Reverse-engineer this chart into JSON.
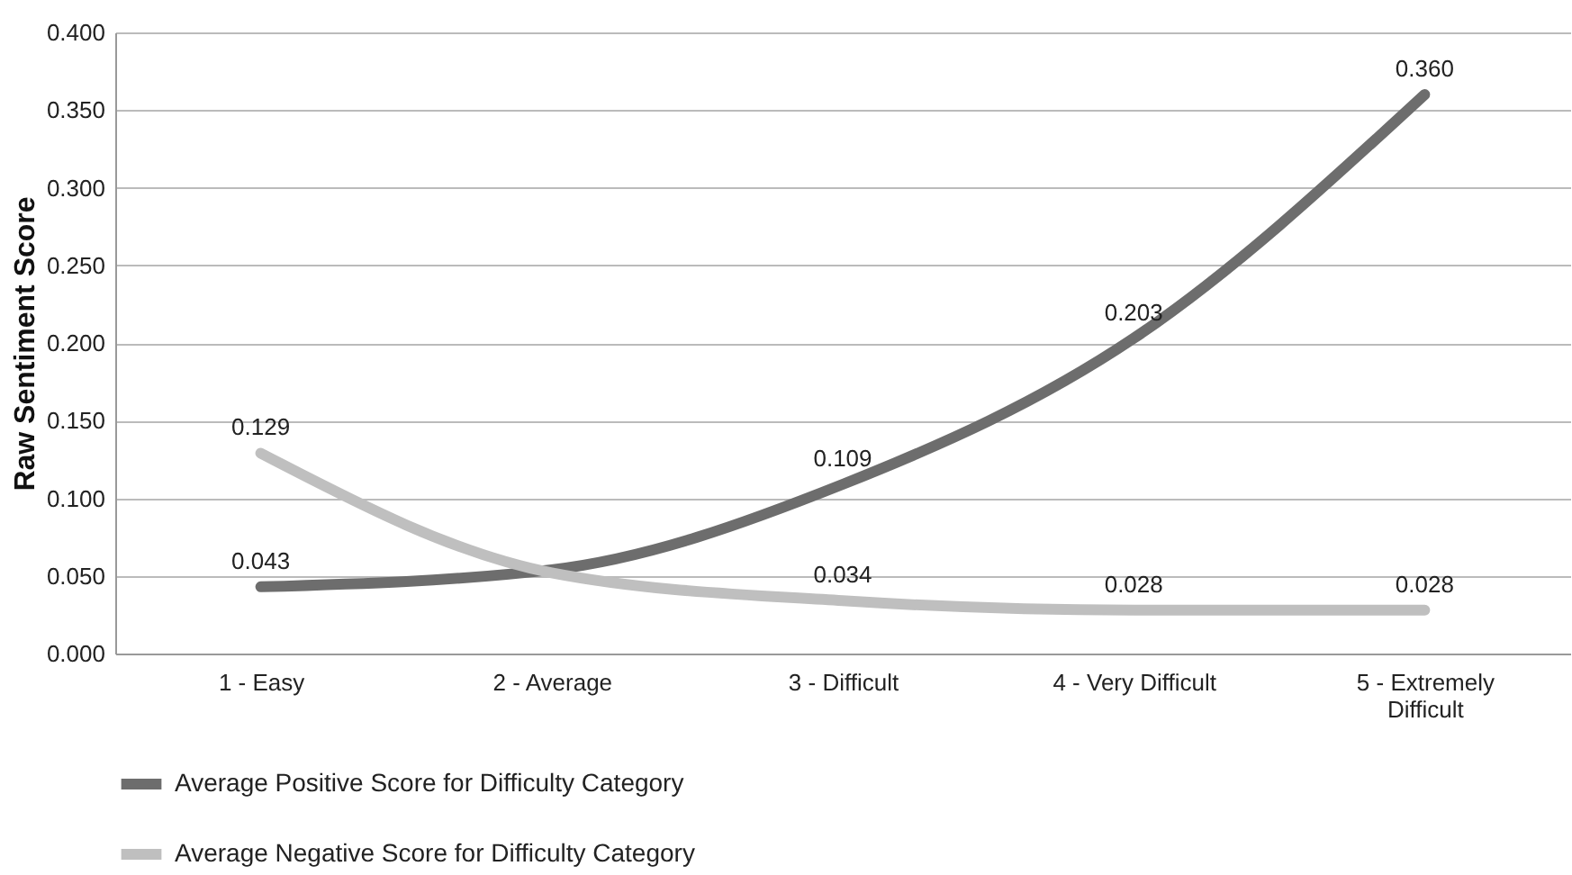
{
  "chart_data": {
    "type": "line",
    "ylabel": "Raw Sentiment Score",
    "categories": [
      "1 - Easy",
      "2 - Average",
      "3 - Difficult",
      "4 - Very Difficult",
      "5 - Extremely Difficult"
    ],
    "series": [
      {
        "name": "Average Positive Score for Difficulty Category",
        "color": "#6d6d6d",
        "values": [
          0.043,
          0.054,
          0.109,
          0.203,
          0.36
        ],
        "value_labels": [
          "0.043",
          null,
          "0.109",
          "0.203",
          "0.360"
        ]
      },
      {
        "name": "Average Negative Score for Difficulty Category",
        "color": "#bfbfbf",
        "values": [
          0.129,
          0.052,
          0.034,
          0.028,
          0.028
        ],
        "value_labels": [
          "0.129",
          null,
          "0.034",
          "0.028",
          "0.028"
        ]
      }
    ],
    "ylim": [
      0,
      0.4
    ],
    "yticks": [
      {
        "value": 0,
        "label": "0.000"
      },
      {
        "value": 0.05,
        "label": "0.050"
      },
      {
        "value": 0.1,
        "label": "0.100"
      },
      {
        "value": 0.15,
        "label": "0.150"
      },
      {
        "value": 0.2,
        "label": "0.200"
      },
      {
        "value": 0.25,
        "label": "0.250"
      },
      {
        "value": 0.3,
        "label": "0.300"
      },
      {
        "value": 0.35,
        "label": "0.350"
      },
      {
        "value": 0.4,
        "label": "0.400"
      }
    ],
    "grid": "y",
    "legend": "bottom",
    "marker": "none",
    "line_style": "solid"
  }
}
